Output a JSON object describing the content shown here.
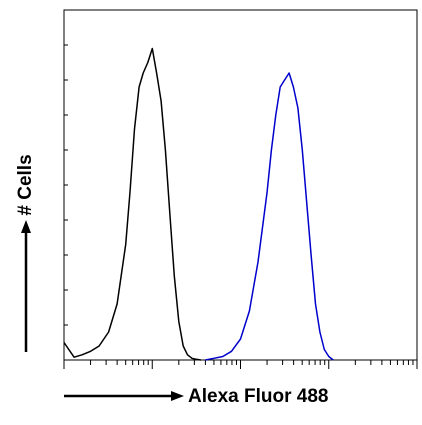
{
  "chart_data": {
    "type": "line",
    "title": "",
    "xlabel": "Alexa Fluor 488",
    "ylabel": "# Cells",
    "x_scale": "log",
    "xlim": [
      1,
      10000
    ],
    "ylim": [
      0,
      100
    ],
    "grid": false,
    "legend": "none",
    "series": [
      {
        "color": "#000000",
        "x": [
          1.0,
          1.3,
          1.6,
          2.0,
          2.5,
          3.2,
          4.0,
          5.0,
          5.6,
          6.3,
          7.1,
          7.9,
          8.9,
          10.0,
          11.2,
          12.6,
          14.1,
          15.8,
          17.8,
          20.0,
          22.4,
          25.1,
          28.2,
          31.6,
          35.5
        ],
        "y": [
          5,
          0.8,
          1.5,
          2.5,
          4,
          8,
          16,
          33,
          48,
          66,
          78,
          82,
          85,
          89,
          82,
          74,
          60,
          42,
          24,
          11,
          4,
          1.5,
          0.5,
          0.2,
          0
        ]
      },
      {
        "color": "#0000cc",
        "x": [
          40,
          50,
          63,
          79,
          100,
          126,
          158,
          200,
          224,
          251,
          282,
          316,
          355,
          398,
          447,
          501,
          562,
          631,
          708,
          794,
          891,
          1000,
          1122
        ],
        "y": [
          0,
          0.5,
          1,
          2.5,
          6,
          14,
          28,
          48,
          60,
          70,
          78,
          80,
          82,
          78,
          72,
          60,
          45,
          30,
          16,
          8,
          3,
          1,
          0
        ]
      }
    ]
  }
}
